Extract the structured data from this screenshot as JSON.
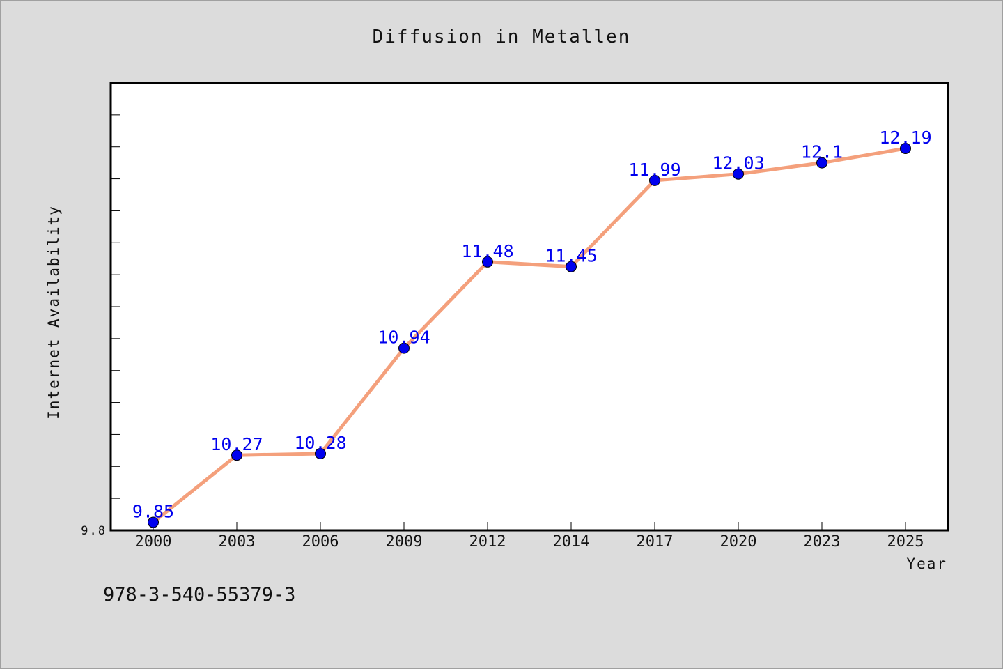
{
  "chart_data": {
    "type": "line",
    "title": "Diffusion in Metallen",
    "xlabel": "Year",
    "ylabel": "Internet Availability",
    "categories": [
      "2000",
      "2003",
      "2006",
      "2009",
      "2012",
      "2014",
      "2017",
      "2020",
      "2023",
      "2025"
    ],
    "series": [
      {
        "values": [
          9.85,
          10.27,
          10.28,
          10.94,
          11.48,
          11.45,
          11.99,
          12.03,
          12.1,
          12.19
        ],
        "labels": [
          "9.85",
          "10.27",
          "10.28",
          "10.94",
          "11.48",
          "11.45",
          "11.99",
          "12.03",
          "12.1",
          "12.19"
        ],
        "line_color": "#f4a07c",
        "marker_color": "#0000ee"
      }
    ],
    "ylim": [
      9.8,
      12.6
    ],
    "yticks_labeled": [
      "9.8"
    ],
    "grid": false,
    "legend": "none",
    "background": "#dcdcdc",
    "plot_background": "#ffffff"
  },
  "footnote": "978-3-540-55379-3"
}
